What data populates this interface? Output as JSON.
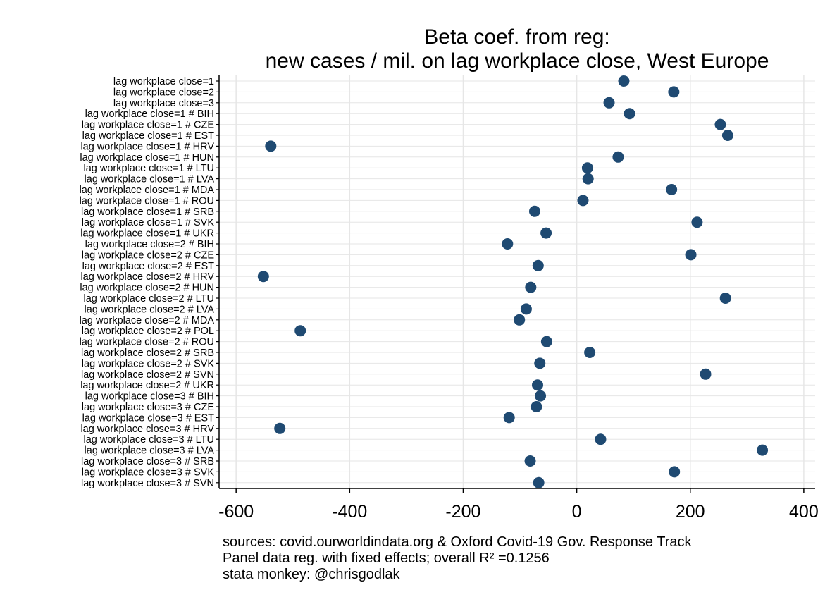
{
  "chart_data": {
    "type": "scatter",
    "title": [
      "Beta coef. from reg:",
      "new cases / mil. on lag workplace close, West Europe"
    ],
    "xlabel": "",
    "ylabel": "",
    "xlim": [
      -630,
      420
    ],
    "xticks": [
      -600,
      -400,
      -200,
      0,
      200,
      400
    ],
    "xtick_labels": [
      "-600",
      "-400",
      "-200",
      "0",
      "200",
      "400"
    ],
    "grid": true,
    "marker_color": "#1f4a72",
    "categories": [
      "lag workplace close=1",
      "lag workplace close=2",
      "lag workplace close=3",
      "lag workplace close=1 # BIH",
      "lag workplace close=1 # CZE",
      "lag workplace close=1 # EST",
      "lag workplace close=1 # HRV",
      "lag workplace close=1 # HUN",
      "lag workplace close=1 # LTU",
      "lag workplace close=1 # LVA",
      "lag workplace close=1 # MDA",
      "lag workplace close=1 # ROU",
      "lag workplace close=1 # SRB",
      "lag workplace close=1 # SVK",
      "lag workplace close=1 # UKR",
      "lag workplace close=2 # BIH",
      "lag workplace close=2 # CZE",
      "lag workplace close=2 # EST",
      "lag workplace close=2 # HRV",
      "lag workplace close=2 # HUN",
      "lag workplace close=2 # LTU",
      "lag workplace close=2 # LVA",
      "lag workplace close=2 # MDA",
      "lag workplace close=2 # POL",
      "lag workplace close=2 # ROU",
      "lag workplace close=2 # SRB",
      "lag workplace close=2 # SVK",
      "lag workplace close=2 # SVN",
      "lag workplace close=2 # UKR",
      "lag workplace close=3 # BIH",
      "lag workplace close=3 # CZE",
      "lag workplace close=3 # EST",
      "lag workplace close=3 # HRV",
      "lag workplace close=3 # LTU",
      "lag workplace close=3 # LVA",
      "lag workplace close=3 # SRB",
      "lag workplace close=3 # SVK",
      "lag workplace close=3 # SVN"
    ],
    "values": [
      83,
      171,
      57,
      93,
      253,
      266,
      -539,
      73,
      19,
      20,
      167,
      11,
      -74,
      212,
      -54,
      -122,
      201,
      -68,
      -552,
      -81,
      262,
      -89,
      -101,
      -487,
      -53,
      23,
      -65,
      227,
      -69,
      -64,
      -71,
      -119,
      -523,
      42,
      327,
      -82,
      172,
      -67
    ]
  },
  "notes": [
    "sources: covid.ourworldindata.org & Oxford Covid-19 Gov. Response Track",
    "Panel data reg. with fixed effects; overall R² =0.1256",
    "stata monkey: @chrisgodlak"
  ]
}
